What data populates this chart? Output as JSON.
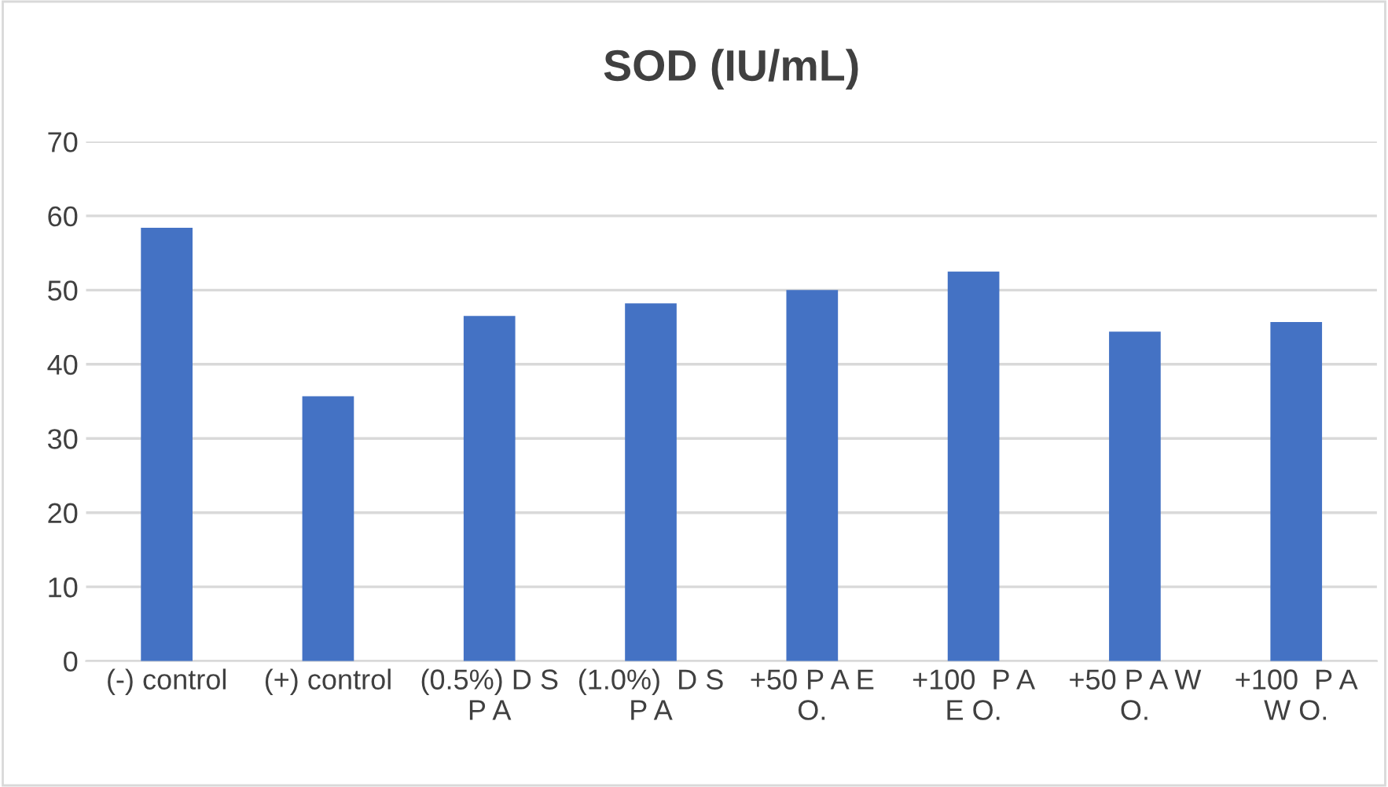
{
  "chart_data": {
    "type": "bar",
    "title": "SOD (IU/mL)",
    "categories": [
      "(-) control",
      "(+) control",
      "(0.5%) D S\nP A",
      "(1.0%)  D S\nP A",
      "+50 P A E\nO.",
      "+100  P A\nE O.",
      "+50 P A W\nO.",
      "+100  P A\nW O."
    ],
    "values": [
      58.4,
      35.7,
      46.5,
      48.2,
      50.0,
      52.5,
      44.4,
      45.7
    ],
    "color": "#4472c4",
    "ylim": [
      0,
      70
    ],
    "yticks": [
      0,
      10,
      20,
      30,
      40,
      50,
      60,
      70
    ],
    "grid": "y",
    "legend": false
  }
}
